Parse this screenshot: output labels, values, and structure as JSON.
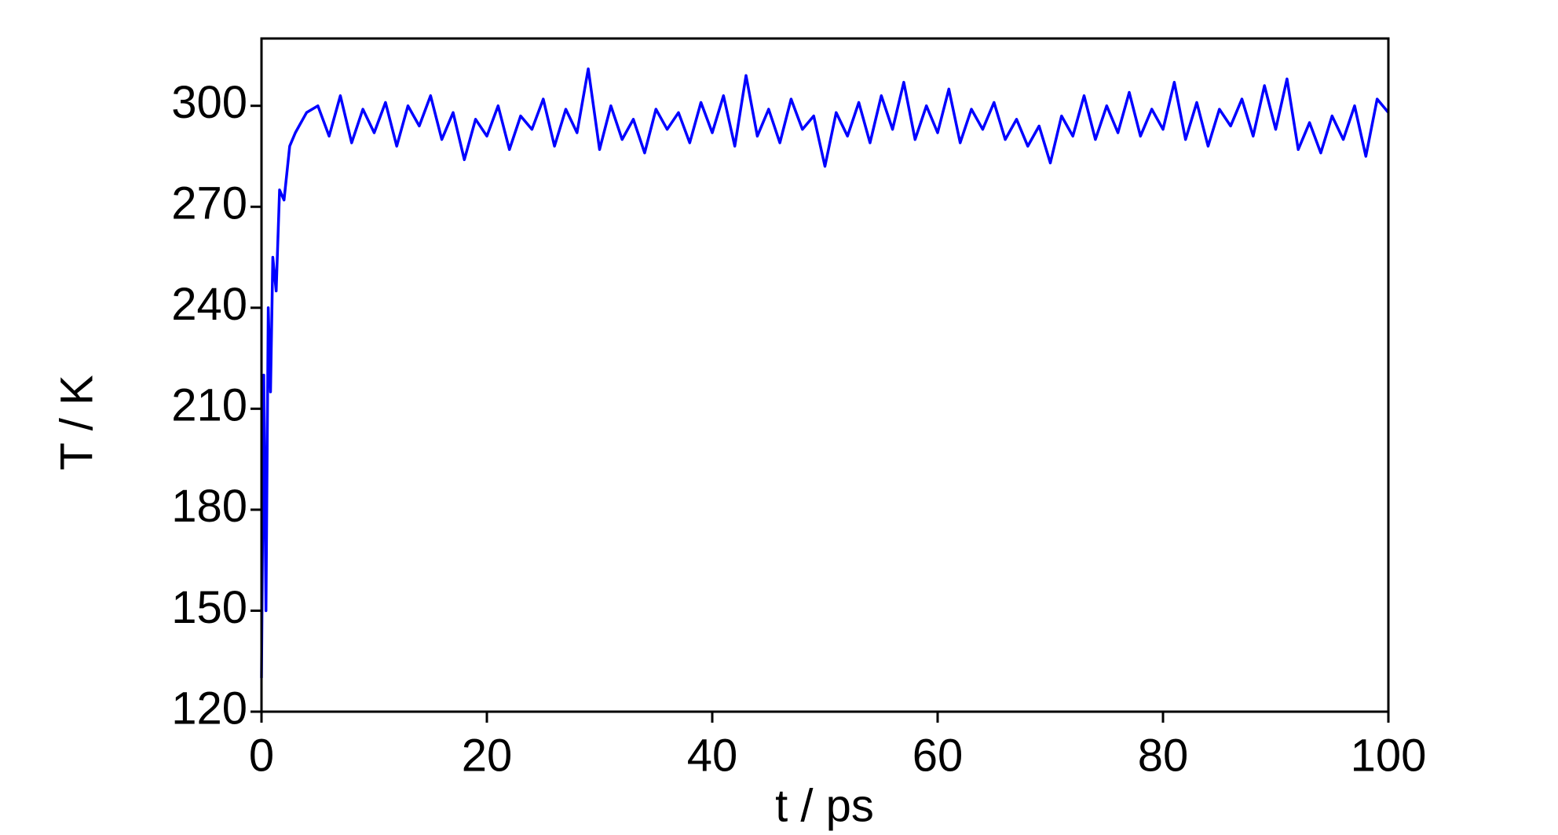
{
  "chart_data": {
    "type": "line",
    "x_label": "t / ps",
    "y_label": "T / K",
    "xlim": [
      0,
      100
    ],
    "xticks": [
      0,
      20,
      40,
      60,
      80,
      100
    ],
    "ylim": [
      120,
      320
    ],
    "yticks": [
      120,
      150,
      180,
      210,
      240,
      270,
      300
    ],
    "grid": false,
    "series": [
      {
        "color": "#0000ff",
        "x": [
          0,
          0.2,
          0.4,
          0.6,
          0.8,
          1,
          1.3,
          1.6,
          2,
          2.5,
          3,
          4,
          5,
          6,
          7,
          8,
          9,
          10,
          11,
          12,
          13,
          14,
          15,
          16,
          17,
          18,
          19,
          20,
          21,
          22,
          23,
          24,
          25,
          26,
          27,
          28,
          29,
          30,
          31,
          32,
          33,
          34,
          35,
          36,
          37,
          38,
          39,
          40,
          41,
          42,
          43,
          44,
          45,
          46,
          47,
          48,
          49,
          50,
          51,
          52,
          53,
          54,
          55,
          56,
          57,
          58,
          59,
          60,
          61,
          62,
          63,
          64,
          65,
          66,
          67,
          68,
          69,
          70,
          71,
          72,
          73,
          74,
          75,
          76,
          77,
          78,
          79,
          80,
          81,
          82,
          83,
          84,
          85,
          86,
          87,
          88,
          89,
          90,
          91,
          92,
          93,
          94,
          95,
          96,
          97,
          98,
          99,
          100
        ],
        "values": [
          130,
          220,
          150,
          240,
          215,
          255,
          245,
          275,
          272,
          288,
          292,
          298,
          300,
          291,
          303,
          289,
          299,
          292,
          301,
          288,
          300,
          294,
          303,
          290,
          298,
          284,
          296,
          291,
          300,
          287,
          297,
          293,
          302,
          288,
          299,
          292,
          311,
          287,
          300,
          290,
          296,
          286,
          299,
          293,
          298,
          289,
          301,
          292,
          303,
          288,
          309,
          291,
          299,
          289,
          302,
          293,
          297,
          282,
          298,
          291,
          301,
          289,
          303,
          293,
          307,
          290,
          300,
          292,
          305,
          289,
          299,
          293,
          301,
          290,
          296,
          288,
          294,
          283,
          297,
          291,
          303,
          290,
          300,
          292,
          304,
          291,
          299,
          293,
          307,
          290,
          301,
          288,
          299,
          294,
          302,
          291,
          306,
          293,
          308,
          287,
          295,
          286,
          297,
          290,
          300,
          285,
          302,
          298
        ]
      }
    ]
  }
}
